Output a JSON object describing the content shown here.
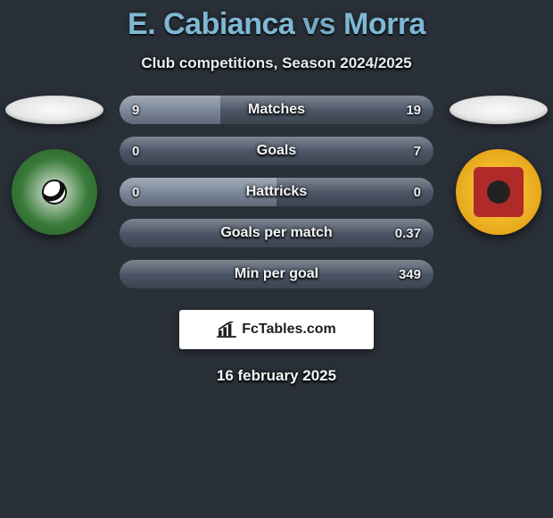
{
  "title_player_a": "E. Cabianca",
  "title_vs": " vs ",
  "title_player_b": "Morra",
  "subtitle": "Club competitions, Season 2024/2025",
  "brand_text": "FcTables.com",
  "date_text": "16 february 2025",
  "colors": {
    "bar_left": "#7c889a",
    "bar_right": "#4c5666",
    "background": "#2a3038",
    "title": "#7eb8d4"
  },
  "rows": [
    {
      "label": "Matches",
      "left_val": "9",
      "right_val": "19",
      "left_num": 9,
      "right_num": 19
    },
    {
      "label": "Goals",
      "left_val": "0",
      "right_val": "7",
      "left_num": 0,
      "right_num": 7
    },
    {
      "label": "Hattricks",
      "left_val": "0",
      "right_val": "0",
      "left_num": 0,
      "right_num": 0
    },
    {
      "label": "Goals per match",
      "left_val": "",
      "right_val": "0.37",
      "left_num": 0,
      "right_num": 0.37
    },
    {
      "label": "Min per goal",
      "left_val": "",
      "right_val": "349",
      "left_num": 0,
      "right_num": 349
    }
  ]
}
